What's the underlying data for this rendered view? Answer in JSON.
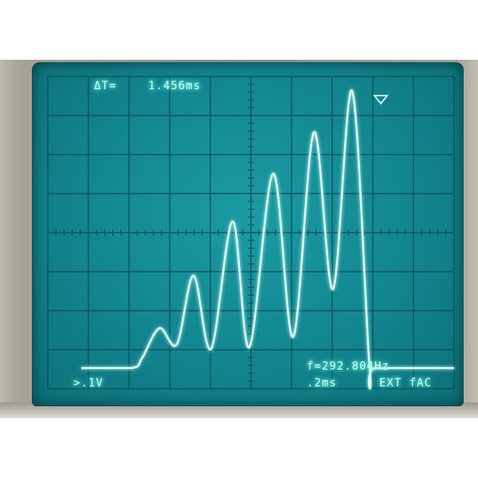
{
  "readouts": {
    "delta_t_label": "ΔT=",
    "delta_t_value": "1.456ms",
    "frequency": "f=292.804Hz",
    "volts_per_div": ">.1V",
    "time_per_div": ".2ms",
    "coupling": "EXT fAC"
  },
  "colors": {
    "screen": "#12858f",
    "trace": "#c9fff4",
    "glow": "#5bf5d6",
    "graticule": "#0b5058"
  },
  "icons": {
    "cursor_marker": "down-triangle-icon"
  }
}
